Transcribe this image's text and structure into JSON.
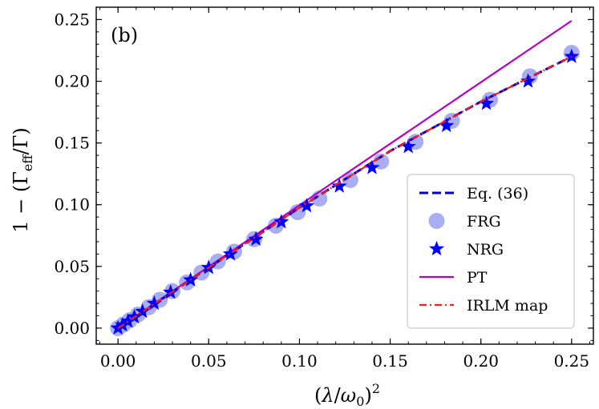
{
  "chart_data": {
    "type": "line",
    "panel_label": "(b)",
    "xlabel": "(λ/ω₀)²",
    "ylabel": "1 − (Γ_eff/Γ)",
    "xlim": [
      -0.012,
      0.262
    ],
    "ylim": [
      -0.013,
      0.26
    ],
    "xticks": [
      0.0,
      0.05,
      0.1,
      0.15,
      0.2,
      0.25
    ],
    "xtick_labels": [
      "0.00",
      "0.05",
      "0.10",
      "0.15",
      "0.20",
      "0.25"
    ],
    "yticks": [
      0.0,
      0.05,
      0.1,
      0.15,
      0.2,
      0.25
    ],
    "ytick_labels": [
      "0.00",
      "0.05",
      "0.10",
      "0.15",
      "0.20",
      "0.25"
    ],
    "legend_position": "lower-right",
    "series": [
      {
        "name": "Eq. (36)",
        "style": "dashed-line",
        "color": "#0000cc",
        "x": [
          0.0,
          0.05,
          0.1,
          0.15,
          0.2,
          0.25
        ],
        "y": [
          0.0,
          0.049,
          0.0975,
          0.1435,
          0.1835,
          0.22
        ]
      },
      {
        "name": "FRG",
        "style": "circle-marker",
        "color": "#9aa0f0",
        "x": [
          0.0,
          0.003,
          0.0065,
          0.011,
          0.017,
          0.023,
          0.03,
          0.038,
          0.046,
          0.055,
          0.064,
          0.075,
          0.087,
          0.099,
          0.111,
          0.128,
          0.145,
          0.164,
          0.184,
          0.205,
          0.227,
          0.25
        ],
        "y": [
          0.0,
          0.003,
          0.0065,
          0.011,
          0.017,
          0.023,
          0.03,
          0.037,
          0.045,
          0.054,
          0.062,
          0.072,
          0.083,
          0.094,
          0.105,
          0.12,
          0.135,
          0.151,
          0.168,
          0.185,
          0.204,
          0.223
        ]
      },
      {
        "name": "NRG",
        "style": "star-marker",
        "color": "#0000ff",
        "x": [
          0.0,
          0.0025,
          0.0055,
          0.009,
          0.0135,
          0.02,
          0.029,
          0.04,
          0.05,
          0.062,
          0.076,
          0.09,
          0.104,
          0.122,
          0.14,
          0.16,
          0.181,
          0.203,
          0.226,
          0.25
        ],
        "y": [
          0.0,
          0.0025,
          0.0055,
          0.009,
          0.0135,
          0.02,
          0.029,
          0.039,
          0.049,
          0.06,
          0.072,
          0.086,
          0.099,
          0.115,
          0.13,
          0.147,
          0.164,
          0.182,
          0.2,
          0.22
        ]
      },
      {
        "name": "PT",
        "style": "solid-line",
        "color": "#b400c8",
        "x": [
          0.0,
          0.25
        ],
        "y": [
          0.0,
          0.249
        ]
      },
      {
        "name": "IRLM map",
        "style": "dashdot-line",
        "color": "#ff1a1a",
        "x": [
          0.0,
          0.05,
          0.1,
          0.15,
          0.2,
          0.25
        ],
        "y": [
          0.0,
          0.049,
          0.0975,
          0.1435,
          0.1835,
          0.22
        ]
      }
    ]
  }
}
